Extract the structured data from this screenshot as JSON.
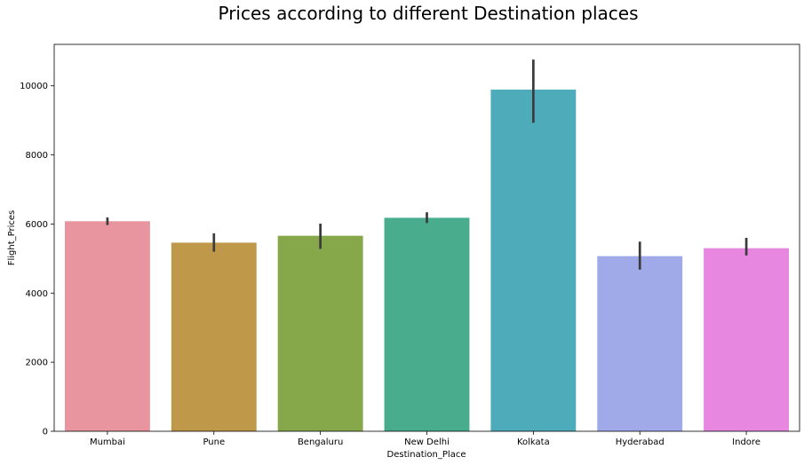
{
  "chart_data": {
    "type": "bar",
    "title": "Prices according to different Destination places",
    "xlabel": "Destination_Place",
    "ylabel": "Flight_Prices",
    "categories": [
      "Mumbai",
      "Pune",
      "Bengaluru",
      "New Delhi",
      "Kolkata",
      "Hyderabad",
      "Indore"
    ],
    "values": [
      6080,
      5460,
      5660,
      6180,
      9890,
      5070,
      5300
    ],
    "error_low": [
      5970,
      5200,
      5280,
      6030,
      8930,
      4680,
      5090
    ],
    "error_high": [
      6190,
      5730,
      6010,
      6340,
      10760,
      5490,
      5600
    ],
    "colors": [
      "#e8959f",
      "#c0984a",
      "#87a84a",
      "#48ac8d",
      "#4eabb9",
      "#a1aae9",
      "#e787e0"
    ],
    "error_color": "#3b3b3b",
    "ylim": [
      0,
      11200
    ],
    "yticks": [
      0,
      2000,
      4000,
      6000,
      8000,
      10000
    ],
    "grid": false,
    "legend": "none"
  }
}
